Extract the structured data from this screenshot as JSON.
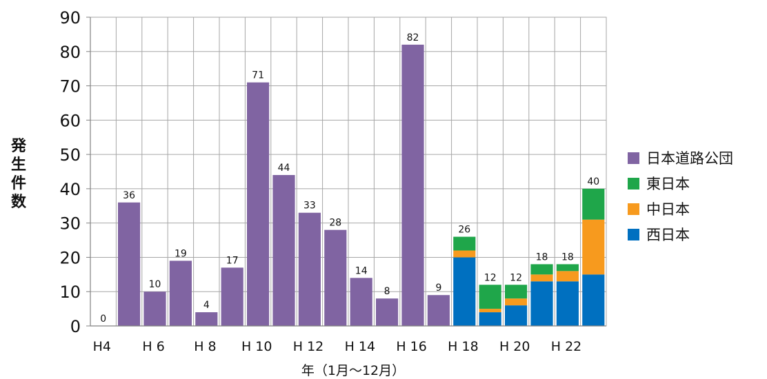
{
  "chart_data": {
    "type": "bar",
    "stacked": true,
    "categories": [
      "H4",
      "H5",
      "H6",
      "H7",
      "H8",
      "H9",
      "H10",
      "H11",
      "H12",
      "H13",
      "H14",
      "H15",
      "H16",
      "H17",
      "H18",
      "H19",
      "H20",
      "H21",
      "H22",
      "H23"
    ],
    "tick_labels": [
      "H4",
      "",
      "H 6",
      "",
      "H 8",
      "",
      "H 10",
      "",
      "H 12",
      "",
      "H 14",
      "",
      "H 16",
      "",
      "H 18",
      "",
      "H 20",
      "",
      "H 22",
      ""
    ],
    "series": [
      {
        "name": "日本道路公団",
        "color": "#8064a2",
        "values": [
          0,
          36,
          10,
          19,
          4,
          17,
          71,
          44,
          33,
          28,
          14,
          8,
          82,
          9,
          0,
          0,
          0,
          0,
          0,
          0
        ]
      },
      {
        "name": "西日本",
        "color": "#0070c0",
        "values": [
          0,
          0,
          0,
          0,
          0,
          0,
          0,
          0,
          0,
          0,
          0,
          0,
          0,
          0,
          20,
          4,
          6,
          13,
          13,
          15
        ]
      },
      {
        "name": "中日本",
        "color": "#f79a1e",
        "values": [
          0,
          0,
          0,
          0,
          0,
          0,
          0,
          0,
          0,
          0,
          0,
          0,
          0,
          0,
          2,
          1,
          2,
          2,
          3,
          16
        ]
      },
      {
        "name": "東日本",
        "color": "#1fa64a",
        "values": [
          0,
          0,
          0,
          0,
          0,
          0,
          0,
          0,
          0,
          0,
          0,
          0,
          0,
          0,
          4,
          7,
          4,
          3,
          2,
          9
        ]
      }
    ],
    "totals": [
      "0",
      "36",
      "10",
      "19",
      "4",
      "17",
      "71",
      "44",
      "33",
      "28",
      "14",
      "8",
      "82",
      "9",
      "26",
      "12",
      "12",
      "18",
      "18",
      "40"
    ],
    "legend_order": [
      "日本道路公団",
      "東日本",
      "中日本",
      "西日本"
    ],
    "legend_position": "right",
    "ylabel": "発生件数",
    "xlabel": "年（1月～12月）",
    "ylim": [
      0,
      90
    ],
    "yticks": [
      0,
      10,
      20,
      30,
      40,
      50,
      60,
      70,
      80,
      90
    ],
    "grid": true
  }
}
